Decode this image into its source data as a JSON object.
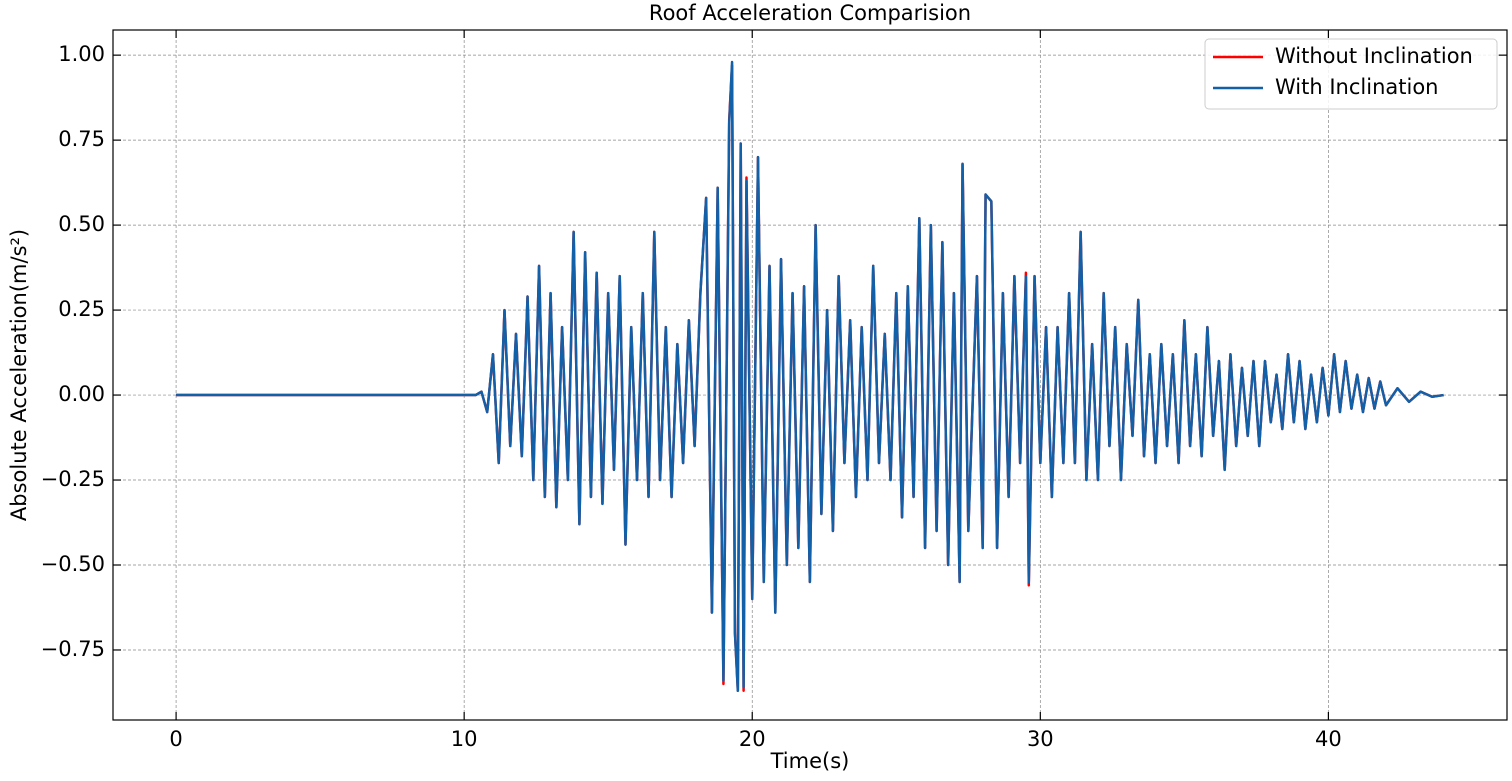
{
  "chart_data": {
    "type": "line",
    "title": "Roof Acceleration Comparision",
    "x_label": "Time(s)",
    "y_label": "Absolute Acceleration(m/s²)",
    "x": [
      0,
      2,
      4,
      6,
      8,
      10,
      10.4,
      10.6,
      10.8,
      11.0,
      11.2,
      11.4,
      11.6,
      11.8,
      12.0,
      12.2,
      12.4,
      12.6,
      12.8,
      13.0,
      13.2,
      13.4,
      13.6,
      13.8,
      14.0,
      14.2,
      14.4,
      14.6,
      14.8,
      15.0,
      15.2,
      15.4,
      15.6,
      15.8,
      16.0,
      16.2,
      16.4,
      16.6,
      16.8,
      17.0,
      17.2,
      17.4,
      17.6,
      17.8,
      18.0,
      18.2,
      18.4,
      18.6,
      18.8,
      19.0,
      19.2,
      19.3,
      19.4,
      19.5,
      19.6,
      19.7,
      19.8,
      20.0,
      20.2,
      20.4,
      20.6,
      20.8,
      21.0,
      21.2,
      21.4,
      21.6,
      21.8,
      22.0,
      22.2,
      22.4,
      22.6,
      22.8,
      23.0,
      23.2,
      23.4,
      23.6,
      23.8,
      24.0,
      24.2,
      24.4,
      24.6,
      24.8,
      25.0,
      25.2,
      25.4,
      25.6,
      25.8,
      26.0,
      26.2,
      26.4,
      26.6,
      26.8,
      27.0,
      27.2,
      27.3,
      27.5,
      27.8,
      28.0,
      28.1,
      28.3,
      28.5,
      28.7,
      28.9,
      29.1,
      29.3,
      29.5,
      29.6,
      29.8,
      30.0,
      30.2,
      30.4,
      30.6,
      30.8,
      31.0,
      31.2,
      31.4,
      31.6,
      31.8,
      32.0,
      32.2,
      32.4,
      32.6,
      32.8,
      33.0,
      33.2,
      33.4,
      33.6,
      33.8,
      34.0,
      34.2,
      34.4,
      34.6,
      34.8,
      35.0,
      35.2,
      35.4,
      35.6,
      35.8,
      36.0,
      36.2,
      36.4,
      36.6,
      36.8,
      37.0,
      37.2,
      37.4,
      37.6,
      37.8,
      38.0,
      38.2,
      38.4,
      38.6,
      38.8,
      39.0,
      39.2,
      39.4,
      39.6,
      39.8,
      40.0,
      40.2,
      40.4,
      40.6,
      40.8,
      41.0,
      41.2,
      41.4,
      41.6,
      41.8,
      42.0,
      42.4,
      42.8,
      43.2,
      43.6,
      44.0
    ],
    "series": [
      {
        "name": "Without Inclination",
        "color": "#ff0000",
        "values": [
          0,
          0,
          0,
          0,
          0,
          0,
          0,
          0.01,
          -0.05,
          0.12,
          -0.2,
          0.25,
          -0.15,
          0.18,
          -0.18,
          0.29,
          -0.25,
          0.38,
          -0.3,
          0.3,
          -0.33,
          0.2,
          -0.25,
          0.48,
          -0.38,
          0.42,
          -0.3,
          0.36,
          -0.32,
          0.3,
          -0.22,
          0.35,
          -0.44,
          0.2,
          -0.25,
          0.3,
          -0.3,
          0.48,
          -0.25,
          0.2,
          -0.3,
          0.15,
          -0.2,
          0.22,
          -0.15,
          0.3,
          0.58,
          -0.64,
          0.61,
          -0.85,
          0.81,
          0.97,
          -0.7,
          -0.87,
          0.74,
          -0.87,
          0.64,
          -0.6,
          0.7,
          -0.55,
          0.38,
          -0.64,
          0.4,
          -0.5,
          0.3,
          -0.45,
          0.32,
          -0.55,
          0.5,
          -0.35,
          0.25,
          -0.4,
          0.35,
          -0.2,
          0.22,
          -0.3,
          0.2,
          -0.25,
          0.38,
          -0.2,
          0.18,
          -0.25,
          0.3,
          -0.36,
          0.32,
          -0.3,
          0.52,
          -0.45,
          0.5,
          -0.4,
          0.45,
          -0.5,
          0.3,
          -0.55,
          0.68,
          -0.4,
          0.35,
          -0.45,
          0.59,
          0.57,
          -0.45,
          0.3,
          -0.3,
          0.35,
          -0.2,
          0.36,
          -0.56,
          0.35,
          -0.2,
          0.2,
          -0.3,
          0.2,
          -0.2,
          0.3,
          -0.2,
          0.48,
          -0.25,
          0.15,
          -0.25,
          0.3,
          -0.15,
          0.2,
          -0.25,
          0.15,
          -0.12,
          0.28,
          -0.18,
          0.12,
          -0.2,
          0.15,
          -0.15,
          0.12,
          -0.2,
          0.22,
          -0.15,
          0.12,
          -0.18,
          0.2,
          -0.12,
          0.1,
          -0.22,
          0.12,
          -0.15,
          0.08,
          -0.12,
          0.1,
          -0.15,
          0.1,
          -0.08,
          0.06,
          -0.1,
          0.12,
          -0.08,
          0.1,
          -0.1,
          0.06,
          -0.08,
          0.08,
          -0.06,
          0.12,
          -0.05,
          0.1,
          -0.04,
          0.06,
          -0.05,
          0.05,
          -0.04,
          0.04,
          -0.03,
          0.02,
          -0.02,
          0.01,
          -0.005,
          0
        ]
      },
      {
        "name": "With Inclination",
        "color": "#1160a8",
        "values": [
          0,
          0,
          0,
          0,
          0,
          0,
          0,
          0.01,
          -0.05,
          0.12,
          -0.2,
          0.25,
          -0.15,
          0.18,
          -0.18,
          0.29,
          -0.25,
          0.38,
          -0.3,
          0.3,
          -0.33,
          0.2,
          -0.25,
          0.48,
          -0.38,
          0.42,
          -0.3,
          0.36,
          -0.32,
          0.3,
          -0.22,
          0.35,
          -0.44,
          0.2,
          -0.25,
          0.3,
          -0.3,
          0.48,
          -0.25,
          0.2,
          -0.3,
          0.15,
          -0.2,
          0.22,
          -0.15,
          0.3,
          0.58,
          -0.64,
          0.61,
          -0.84,
          0.8,
          0.98,
          -0.7,
          -0.87,
          0.74,
          -0.86,
          0.63,
          -0.6,
          0.7,
          -0.55,
          0.38,
          -0.64,
          0.4,
          -0.5,
          0.3,
          -0.45,
          0.32,
          -0.55,
          0.5,
          -0.35,
          0.25,
          -0.4,
          0.35,
          -0.2,
          0.22,
          -0.3,
          0.2,
          -0.25,
          0.38,
          -0.2,
          0.18,
          -0.25,
          0.3,
          -0.36,
          0.32,
          -0.3,
          0.52,
          -0.45,
          0.5,
          -0.4,
          0.45,
          -0.5,
          0.3,
          -0.55,
          0.68,
          -0.4,
          0.35,
          -0.45,
          0.59,
          0.57,
          -0.45,
          0.3,
          -0.3,
          0.35,
          -0.2,
          0.35,
          -0.55,
          0.35,
          -0.2,
          0.2,
          -0.3,
          0.2,
          -0.2,
          0.3,
          -0.2,
          0.48,
          -0.25,
          0.15,
          -0.25,
          0.3,
          -0.15,
          0.2,
          -0.25,
          0.15,
          -0.12,
          0.28,
          -0.18,
          0.12,
          -0.2,
          0.15,
          -0.15,
          0.12,
          -0.2,
          0.22,
          -0.15,
          0.12,
          -0.18,
          0.2,
          -0.12,
          0.1,
          -0.22,
          0.12,
          -0.15,
          0.08,
          -0.12,
          0.1,
          -0.15,
          0.1,
          -0.08,
          0.06,
          -0.1,
          0.12,
          -0.08,
          0.1,
          -0.1,
          0.06,
          -0.08,
          0.08,
          -0.06,
          0.12,
          -0.05,
          0.1,
          -0.04,
          0.06,
          -0.05,
          0.05,
          -0.04,
          0.04,
          -0.03,
          0.02,
          -0.02,
          0.01,
          -0.005,
          0
        ]
      }
    ],
    "xlim": [
      -2.19,
      46.2
    ],
    "ylim": [
      -0.956,
      1.074
    ],
    "xticks": [
      0,
      10,
      20,
      30,
      40
    ],
    "yticks": [
      {
        "value": -0.75,
        "label": "−0.75"
      },
      {
        "value": -0.5,
        "label": "−0.50"
      },
      {
        "value": -0.25,
        "label": "−0.25"
      },
      {
        "value": 0,
        "label": "0.00"
      },
      {
        "value": 0.25,
        "label": "0.25"
      },
      {
        "value": 0.5,
        "label": "0.50"
      },
      {
        "value": 0.75,
        "label": "0.75"
      },
      {
        "value": 1,
        "label": "1.00"
      }
    ],
    "grid": true,
    "legend": "upper right"
  }
}
